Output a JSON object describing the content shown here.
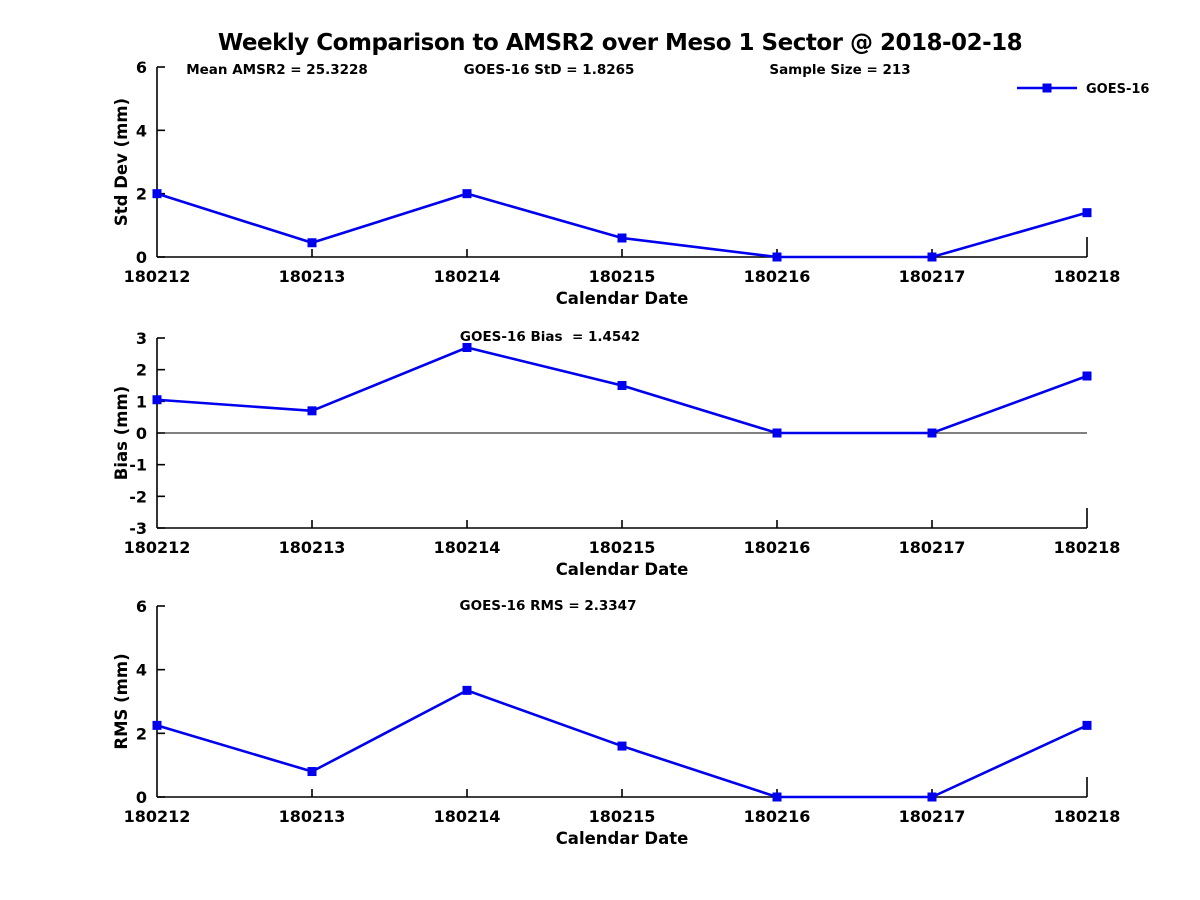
{
  "figure": {
    "title": "Weekly Comparison to AMSR2 over Meso 1 Sector @ 2018-02-18",
    "line_color": "#0000EE",
    "axis_color": "#000000",
    "background_color": "#FFFFFF"
  },
  "chart_data": [
    {
      "type": "line",
      "name": "std-dev",
      "annotations": [
        "Mean AMSR2 = 25.3228",
        "GOES-16 StD = 1.8265",
        "Sample Size = 213"
      ],
      "legend": {
        "label": "GOES-16",
        "position": "top-right",
        "marker": "square"
      },
      "xlabel": "Calendar Date",
      "ylabel": "Std Dev (mm)",
      "categories": [
        "180212",
        "180213",
        "180214",
        "180215",
        "180216",
        "180217",
        "180218"
      ],
      "values": [
        2.0,
        0.45,
        2.0,
        0.6,
        0.0,
        0.0,
        1.4
      ],
      "ylim": [
        0,
        6
      ],
      "yticks": [
        0,
        2,
        4,
        6
      ],
      "grid": false,
      "zero_line": false
    },
    {
      "type": "line",
      "name": "bias",
      "annotations": [
        "GOES-16 Bias  = 1.4542"
      ],
      "legend": null,
      "xlabel": "Calendar Date",
      "ylabel": "Bias (mm)",
      "categories": [
        "180212",
        "180213",
        "180214",
        "180215",
        "180216",
        "180217",
        "180218"
      ],
      "values": [
        1.05,
        0.7,
        2.7,
        1.5,
        0.0,
        0.0,
        1.8
      ],
      "ylim": [
        -3,
        3
      ],
      "yticks": [
        -3,
        -2,
        -1,
        0,
        1,
        2,
        3
      ],
      "grid": false,
      "zero_line": true
    },
    {
      "type": "line",
      "name": "rms",
      "annotations": [
        "GOES-16 RMS = 2.3347"
      ],
      "legend": null,
      "xlabel": "Calendar Date",
      "ylabel": "RMS (mm)",
      "categories": [
        "180212",
        "180213",
        "180214",
        "180215",
        "180216",
        "180217",
        "180218"
      ],
      "values": [
        2.25,
        0.8,
        3.35,
        1.6,
        0.0,
        0.0,
        2.25
      ],
      "ylim": [
        0,
        6
      ],
      "yticks": [
        0,
        2,
        4,
        6
      ],
      "grid": false,
      "zero_line": false
    }
  ]
}
